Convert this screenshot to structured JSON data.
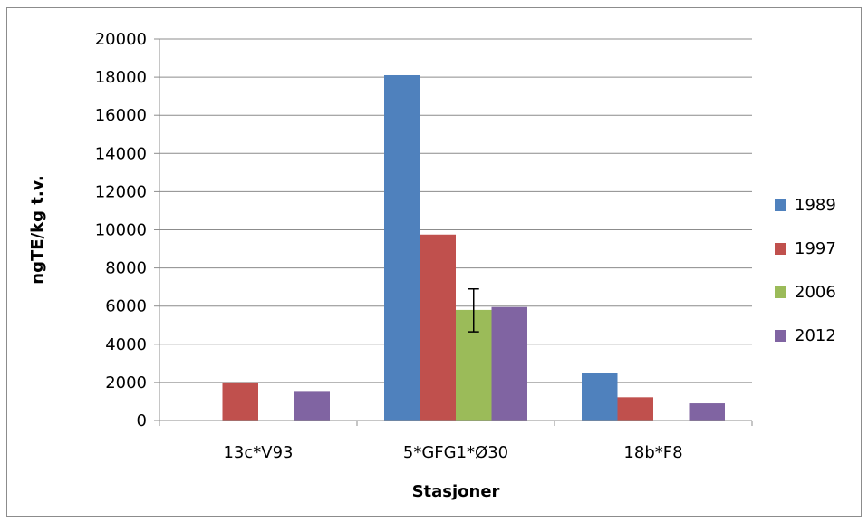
{
  "chart_data": {
    "type": "bar",
    "title": "",
    "xlabel": "Stasjoner",
    "ylabel": "ngTE/kg t.v.",
    "ylim": [
      0,
      20000
    ],
    "yticks": [
      0,
      2000,
      4000,
      6000,
      8000,
      10000,
      12000,
      14000,
      16000,
      18000,
      20000
    ],
    "grid": true,
    "legend_position": "right",
    "categories": [
      "13c*V93",
      "5*GFG1*Ø30",
      "18b*F8"
    ],
    "series": [
      {
        "name": "1989",
        "color": "#4f81bd",
        "values": [
          null,
          18100,
          2500
        ]
      },
      {
        "name": "1997",
        "color": "#c0504d",
        "values": [
          2000,
          9750,
          1220
        ]
      },
      {
        "name": "2006",
        "color": "#9bbb59",
        "values": [
          null,
          5800,
          null
        ],
        "error_bars": [
          null,
          [
            4650,
            6900
          ],
          null
        ]
      },
      {
        "name": "2012",
        "color": "#8064a2",
        "values": [
          1550,
          5950,
          900
        ]
      }
    ]
  }
}
